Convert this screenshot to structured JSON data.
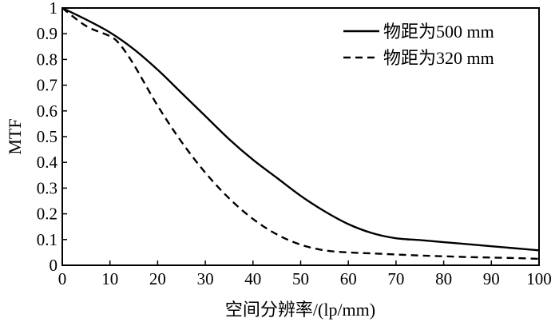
{
  "chart_data": {
    "type": "line",
    "xlabel": "空间分辨率/(lp/mm)",
    "ylabel": "MTF",
    "xlim": [
      0,
      100
    ],
    "ylim": [
      0,
      1
    ],
    "xticks": [
      0,
      10,
      20,
      30,
      40,
      50,
      60,
      70,
      80,
      90,
      100
    ],
    "yticks": [
      0,
      0.1,
      0.2,
      0.3,
      0.4,
      0.5,
      0.6,
      0.7,
      0.8,
      0.9,
      1
    ],
    "grid": false,
    "legend_position": "top-right",
    "series": [
      {
        "name": "物距为500 mm",
        "style": "solid",
        "color": "#000000",
        "x": [
          0,
          5,
          10,
          15,
          20,
          25,
          30,
          35,
          40,
          45,
          50,
          55,
          60,
          65,
          70,
          75,
          80,
          85,
          90,
          95,
          100
        ],
        "y": [
          1.0,
          0.955,
          0.905,
          0.84,
          0.76,
          0.67,
          0.58,
          0.49,
          0.41,
          0.34,
          0.27,
          0.21,
          0.16,
          0.125,
          0.105,
          0.098,
          0.09,
          0.082,
          0.074,
          0.066,
          0.058
        ]
      },
      {
        "name": "物距为320 mm",
        "style": "dashed",
        "color": "#000000",
        "x": [
          0,
          5,
          10,
          12,
          15,
          20,
          25,
          30,
          35,
          40,
          45,
          50,
          55,
          60,
          65,
          70,
          75,
          80,
          85,
          90,
          95,
          100
        ],
        "y": [
          1.0,
          0.93,
          0.89,
          0.86,
          0.78,
          0.62,
          0.48,
          0.36,
          0.26,
          0.18,
          0.12,
          0.08,
          0.058,
          0.05,
          0.046,
          0.042,
          0.038,
          0.035,
          0.032,
          0.03,
          0.028,
          0.025
        ]
      }
    ]
  }
}
